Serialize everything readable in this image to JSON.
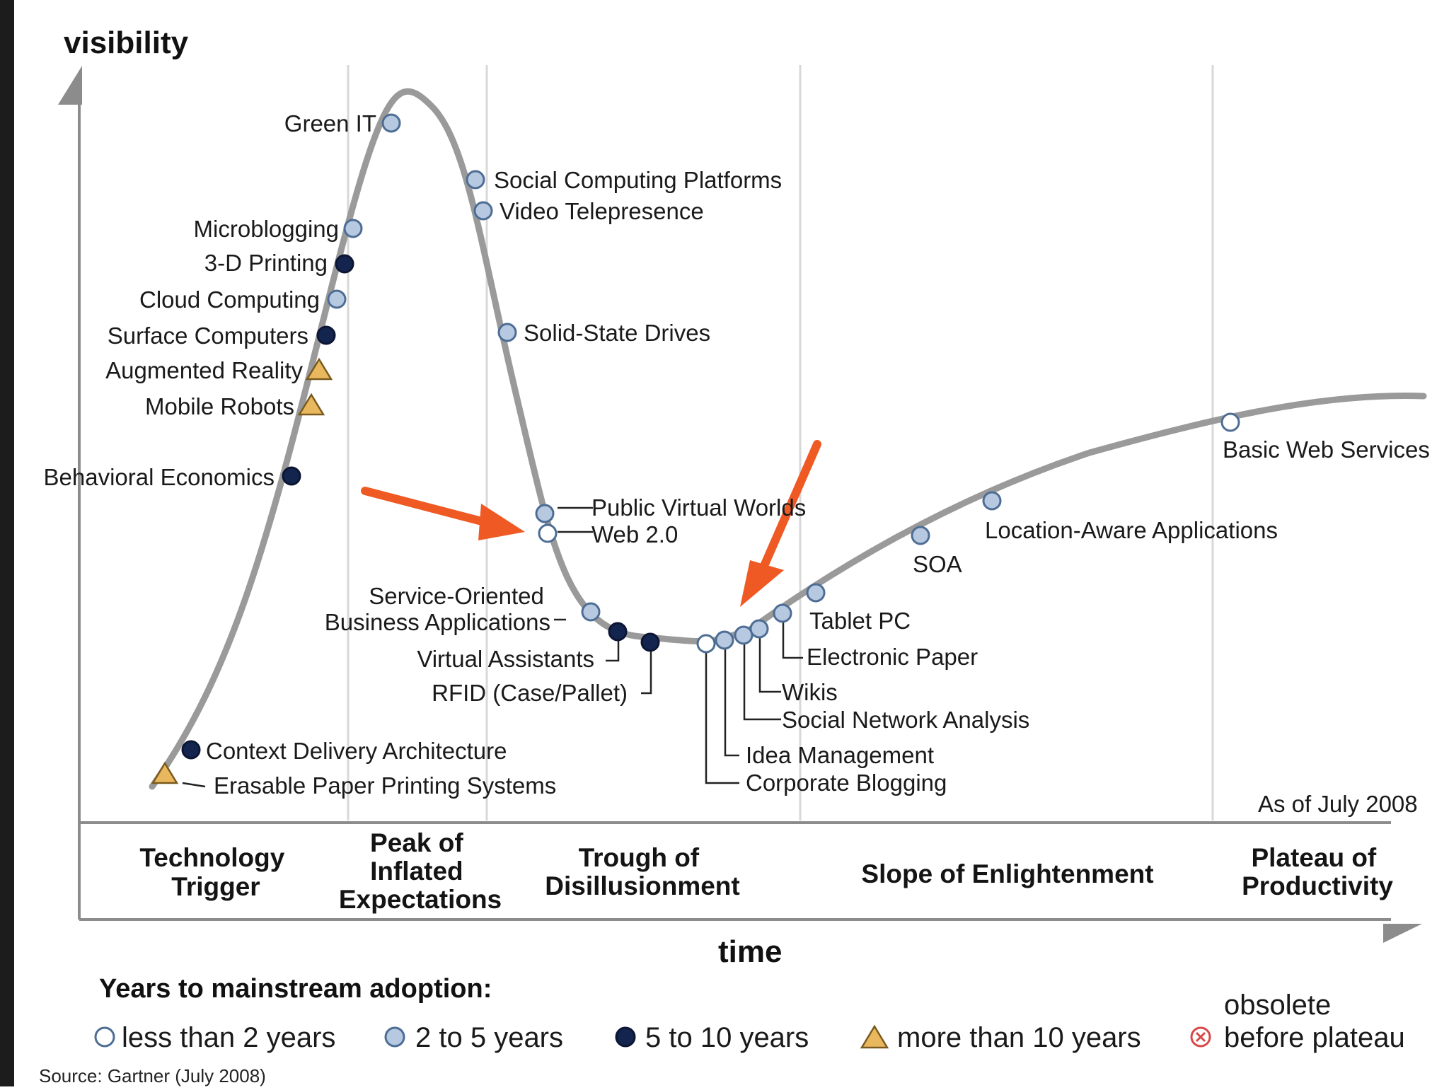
{
  "axes": {
    "y_label": "visibility",
    "x_label": "time"
  },
  "as_of": "As of July 2008",
  "phases": [
    {
      "id": "trigger",
      "lines": [
        "Technology",
        "Trigger"
      ]
    },
    {
      "id": "peak",
      "lines": [
        "Peak of",
        "Inflated",
        "Expectations"
      ]
    },
    {
      "id": "trough",
      "lines": [
        "Trough of",
        "Disillusionment"
      ]
    },
    {
      "id": "slope",
      "lines": [
        "Slope of Enlightenment"
      ]
    },
    {
      "id": "plateau",
      "lines": [
        "Plateau of",
        "Productivity"
      ]
    }
  ],
  "technologies": [
    {
      "name": "Green IT",
      "category": "2-5"
    },
    {
      "name": "Social Computing Platforms",
      "category": "2-5"
    },
    {
      "name": "Video Telepresence",
      "category": "2-5"
    },
    {
      "name": "Microblogging",
      "category": "2-5"
    },
    {
      "name": "3-D Printing",
      "category": "5-10"
    },
    {
      "name": "Cloud Computing",
      "category": "2-5"
    },
    {
      "name": "Surface Computers",
      "category": "5-10"
    },
    {
      "name": "Augmented Reality",
      "category": "10+"
    },
    {
      "name": "Mobile Robots",
      "category": "10+"
    },
    {
      "name": "Solid-State Drives",
      "category": "2-5"
    },
    {
      "name": "Behavioral Economics",
      "category": "5-10"
    },
    {
      "name": "Public Virtual Worlds",
      "category": "2-5"
    },
    {
      "name": "Web 2.0",
      "category": "lt2"
    },
    {
      "name": "Service-Oriented Business Applications",
      "category": "2-5",
      "lines": [
        "Service-Oriented",
        "Business Applications"
      ]
    },
    {
      "name": "Virtual Assistants",
      "category": "5-10"
    },
    {
      "name": "RFID (Case/Pallet)",
      "category": "5-10"
    },
    {
      "name": "Context Delivery Architecture",
      "category": "5-10"
    },
    {
      "name": "Erasable Paper Printing Systems",
      "category": "10+"
    },
    {
      "name": "Corporate Blogging",
      "category": "lt2"
    },
    {
      "name": "Idea Management",
      "category": "2-5"
    },
    {
      "name": "Social Network Analysis",
      "category": "2-5"
    },
    {
      "name": "Wikis",
      "category": "2-5"
    },
    {
      "name": "Electronic Paper",
      "category": "2-5"
    },
    {
      "name": "Tablet PC",
      "category": "2-5"
    },
    {
      "name": "SOA",
      "category": "2-5"
    },
    {
      "name": "Location-Aware Applications",
      "category": "2-5"
    },
    {
      "name": "Basic Web Services",
      "category": "lt2"
    }
  ],
  "legend": {
    "title": "Years to mainstream adoption:",
    "items": [
      {
        "key": "lt2",
        "label": "less than 2 years",
        "fill": "#ffffff"
      },
      {
        "key": "2-5",
        "label": "2 to 5 years",
        "fill": "#b7c9e0"
      },
      {
        "key": "5-10",
        "label": "5 to 10 years",
        "fill": "#13244f"
      },
      {
        "key": "10+",
        "label": "more than 10 years",
        "fill": "#e9b85e"
      },
      {
        "key": "obsolete",
        "label_lines": [
          "obsolete",
          "before plateau"
        ],
        "fill": "#d94848"
      }
    ]
  },
  "source": "Source: Gartner (July 2008)",
  "colors": {
    "curve": "#9a9a9a",
    "marker_stroke": "#4e6d94",
    "arrow": "#ef5a24",
    "axis": "#8c8c8c"
  }
}
